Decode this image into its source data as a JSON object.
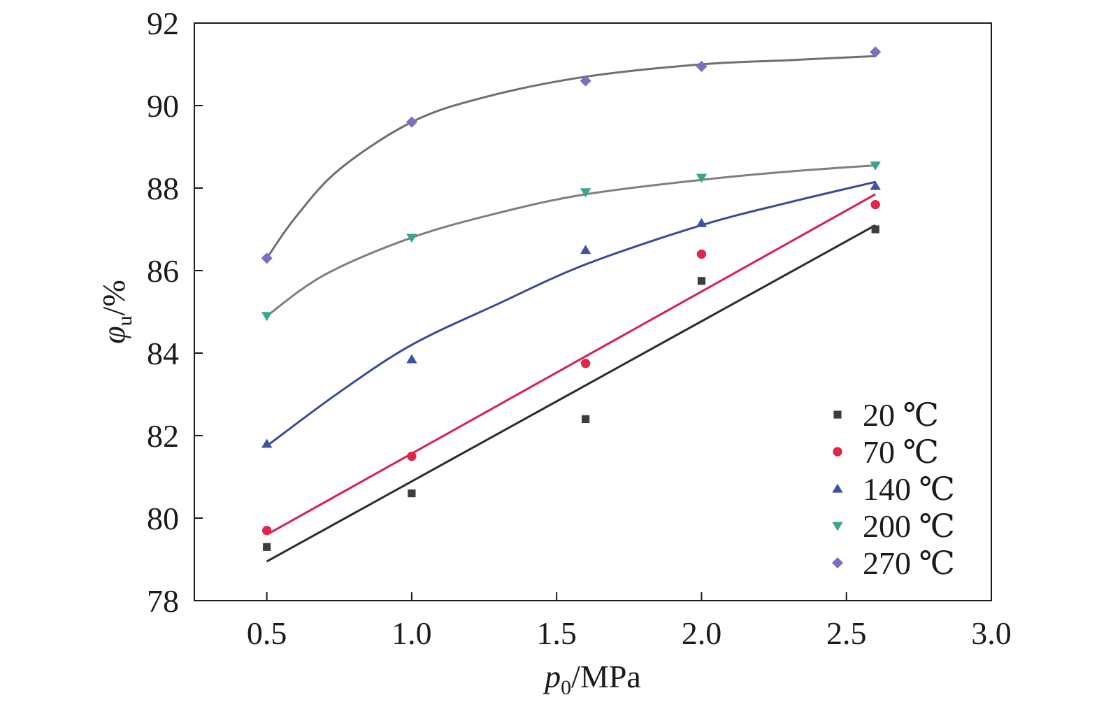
{
  "chart_data": {
    "type": "scatter",
    "title": "",
    "xlabel": {
      "var": "p",
      "sub": "0",
      "unit": "/MPa"
    },
    "ylabel": {
      "var": "φ",
      "sub": "u",
      "unit": "/%"
    },
    "xlim": [
      0.25,
      3.0
    ],
    "ylim": [
      78,
      92
    ],
    "xticks": [
      0.5,
      1.0,
      1.5,
      2.0,
      2.5,
      3.0
    ],
    "xtick_labels": [
      "0.5",
      "1.0",
      "1.5",
      "2.0",
      "2.5",
      "3.0"
    ],
    "yticks": [
      78,
      80,
      82,
      84,
      86,
      88,
      90,
      92
    ],
    "ytick_labels": [
      "78",
      "80",
      "82",
      "84",
      "86",
      "88",
      "90",
      "92"
    ],
    "grid": false,
    "legend_position": "bottom-right",
    "x": [
      0.5,
      1.0,
      1.6,
      2.0,
      2.6
    ],
    "series": [
      {
        "name": "20 ℃",
        "marker": "square",
        "color": "#3d3d3d",
        "line_color": "#2b2b2b",
        "values": [
          79.3,
          80.6,
          82.4,
          85.75,
          87.0
        ],
        "fit": [
          [
            0.5,
            78.95
          ],
          [
            2.6,
            87.1
          ]
        ]
      },
      {
        "name": "70 ℃",
        "marker": "circle",
        "color": "#e0244a",
        "line_color": "#d61f5a",
        "values": [
          79.7,
          81.5,
          83.75,
          86.4,
          87.6
        ],
        "fit": [
          [
            0.5,
            79.6
          ],
          [
            2.6,
            87.85
          ]
        ]
      },
      {
        "name": "140 ℃",
        "marker": "triangle-up",
        "color": "#3f51a3",
        "line_color": "#3a4a9a",
        "values": [
          81.8,
          83.85,
          86.5,
          87.15,
          88.05
        ],
        "fit": [
          [
            0.5,
            81.75
          ],
          [
            0.75,
            83.05
          ],
          [
            1.0,
            84.2
          ],
          [
            1.3,
            85.2
          ],
          [
            1.6,
            86.15
          ],
          [
            2.0,
            87.1
          ],
          [
            2.3,
            87.65
          ],
          [
            2.6,
            88.15
          ]
        ]
      },
      {
        "name": "200 ℃",
        "marker": "triangle-down",
        "color": "#3aa58e",
        "line_color": "#7f7f7f",
        "values": [
          84.9,
          86.8,
          87.9,
          88.25,
          88.55
        ],
        "fit": [
          [
            0.5,
            84.9
          ],
          [
            0.7,
            85.9
          ],
          [
            1.0,
            86.8
          ],
          [
            1.3,
            87.4
          ],
          [
            1.6,
            87.85
          ],
          [
            2.0,
            88.2
          ],
          [
            2.3,
            88.4
          ],
          [
            2.6,
            88.55
          ]
        ]
      },
      {
        "name": "270 ℃",
        "marker": "diamond",
        "color": "#7b6fc0",
        "line_color": "#6f6f6f",
        "values": [
          86.3,
          89.6,
          90.6,
          90.95,
          91.3
        ],
        "fit": [
          [
            0.5,
            86.3
          ],
          [
            0.6,
            87.3
          ],
          [
            0.75,
            88.45
          ],
          [
            1.0,
            89.6
          ],
          [
            1.25,
            90.2
          ],
          [
            1.6,
            90.7
          ],
          [
            2.0,
            91.0
          ],
          [
            2.3,
            91.1
          ],
          [
            2.6,
            91.2
          ]
        ]
      }
    ]
  }
}
